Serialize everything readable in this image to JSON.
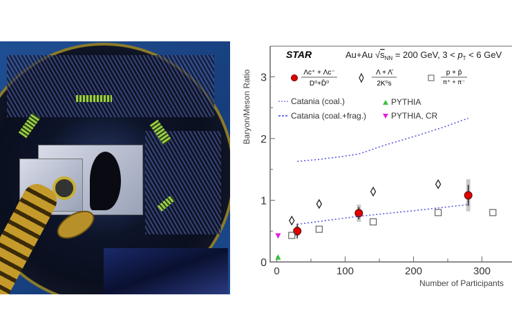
{
  "photo": {
    "label": "detector-photo"
  },
  "chart_data": {
    "type": "scatter",
    "brand": "STAR",
    "title": "Au+Au √s_NN = 200 GeV, 3 < p_T < 6 GeV",
    "title_parts": {
      "prefix": "Au+Au ",
      "sqrt": "s",
      "sub": "NN",
      "mid": " = 200 GeV, 3 < ",
      "p": "p",
      "psub": "T",
      "suffix": " < 6 GeV"
    },
    "xlabel": "Number of Participants",
    "ylabel": "Baryon/Meson Ratio",
    "xlim": [
      -5,
      345
    ],
    "ylim": [
      0,
      3.4
    ],
    "xticks": [
      0,
      100,
      200,
      300
    ],
    "yticks": [
      0,
      1,
      2,
      3
    ],
    "legend": {
      "lambda_c": {
        "num": "Λc⁺ + Λc⁻",
        "den": "D⁰+D̄⁰"
      },
      "lambda": {
        "num": "Λ + Λ̄",
        "den": "2K⁰s"
      },
      "proton": {
        "num": "p + p̄",
        "den": "π⁺ + π⁻"
      },
      "catania_coal": "Catania (coal.)",
      "catania_frag": "Catania (coal.+frag.)",
      "pythia": "PYTHIA",
      "pythia_cr": "PYTHIA, CR"
    },
    "colors": {
      "lambda_c": "#e00000",
      "catania": "#3b3bd8",
      "pythia": "#3cc03c",
      "pythia_cr": "#e020e0"
    },
    "series": [
      {
        "name": "Lambda_c/D0",
        "marker": "circle",
        "x": [
          30,
          120,
          280
        ],
        "y": [
          0.5,
          0.79,
          1.08
        ],
        "stat_err": [
          0.12,
          0.1,
          0.17
        ],
        "sys_err": [
          0.08,
          0.14,
          0.26
        ]
      },
      {
        "name": "Lambda/2K0s",
        "marker": "diamond",
        "x": [
          22,
          62,
          141,
          236
        ],
        "y": [
          0.67,
          0.94,
          1.14,
          1.26
        ]
      },
      {
        "name": "p/pi",
        "marker": "square",
        "x": [
          22,
          62,
          141,
          236,
          316
        ],
        "y": [
          0.43,
          0.53,
          0.65,
          0.8,
          0.8
        ]
      },
      {
        "name": "Catania (coal.)",
        "marker": "dotted-line",
        "x": [
          30,
          60,
          90,
          120,
          160,
          200,
          240,
          280
        ],
        "y": [
          1.63,
          1.66,
          1.7,
          1.75,
          1.9,
          2.03,
          2.17,
          2.33
        ]
      },
      {
        "name": "Catania (coal.+frag.)",
        "marker": "dotted-line",
        "x": [
          30,
          120,
          200,
          280
        ],
        "y": [
          0.61,
          0.74,
          0.83,
          0.93
        ]
      },
      {
        "name": "PYTHIA",
        "marker": "triangle-up",
        "x": [
          2
        ],
        "y": [
          0.07
        ]
      },
      {
        "name": "PYTHIA, CR",
        "marker": "triangle-down",
        "x": [
          2
        ],
        "y": [
          0.42
        ]
      }
    ]
  }
}
